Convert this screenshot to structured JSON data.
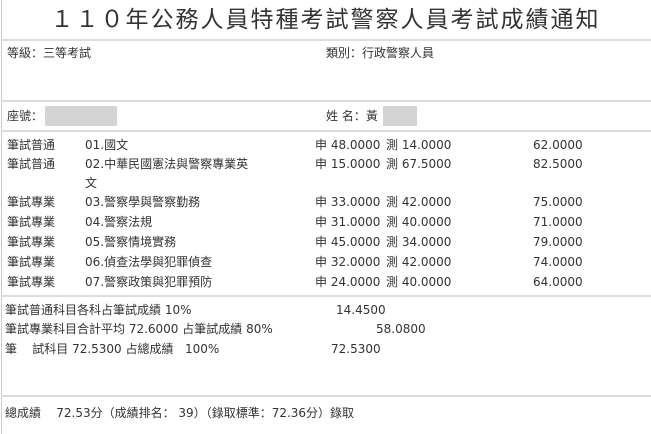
{
  "title": "１１０年公務人員特種考試警察人員考試成績通知",
  "level_label": "等級：三等考試",
  "category_label": "類別：行政警察人員",
  "seat_label": "座號：",
  "name_label": "姓 名：黃",
  "subjects": [
    {
      "type": "筆試普通",
      "name": "01.國文",
      "a": "申 48.0000",
      "b": "測 14.0000",
      "score": "62.0000"
    },
    {
      "type": "筆試普通",
      "name": "02.中華民國憲法與警察專業英",
      "name2": "文",
      "a": "申 15.0000",
      "b": "測 67.5000",
      "score": "82.5000"
    },
    {
      "type": "筆試專業",
      "name": "03.警察學與警察勤務",
      "a": "申 33.0000",
      "b": "測 42.0000",
      "score": "75.0000"
    },
    {
      "type": "筆試專業",
      "name": "04.警察法規",
      "a": "申 31.0000",
      "b": "測 40.0000",
      "score": "71.0000"
    },
    {
      "type": "筆試專業",
      "name": "05.警察情境實務",
      "a": "申 45.0000",
      "b": "測 34.0000",
      "score": "79.0000"
    },
    {
      "type": "筆試專業",
      "name": "06.偵查法學與犯罪偵查",
      "a": "申 32.0000",
      "b": "測 42.0000",
      "score": "74.0000"
    },
    {
      "type": "筆試專業",
      "name": "07.警察政策與犯罪預防",
      "a": "申 24.0000",
      "b": "測 40.0000",
      "score": "64.0000"
    }
  ],
  "summary": [
    {
      "label": "筆試普通科目各科占筆試成績  10%",
      "value": "14.4500"
    },
    {
      "label": "筆試專業科目合計平均 72.6000 占筆試成績  80%",
      "value": "58.0800"
    },
    {
      "label": "筆    試科目 72.5300 占總成績   100%",
      "value": "72.5300"
    }
  ],
  "total": "總成績    72.53分（成績排名： 39）（錄取標準：72.36分）錄取"
}
